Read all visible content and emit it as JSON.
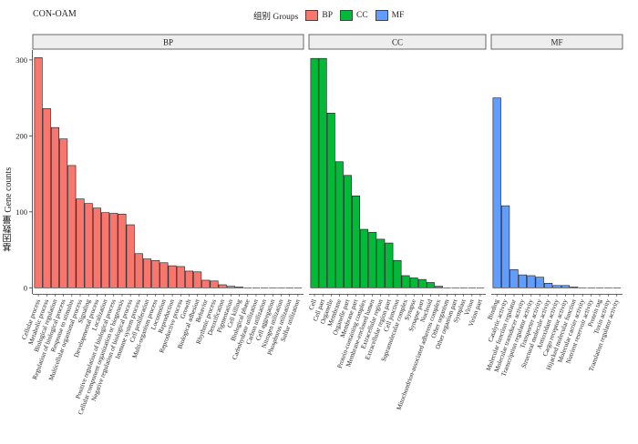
{
  "page_title": "CON-OAM",
  "legend": {
    "title": "组别 Groups",
    "items": [
      {
        "label": "BP",
        "color": "#F8766D"
      },
      {
        "label": "CC",
        "color": "#00BA38"
      },
      {
        "label": "MF",
        "color": "#619CFF"
      }
    ]
  },
  "chart_data": {
    "type": "bar",
    "title": "CON-OAM",
    "ylabel": "基因数量  Gene counts",
    "xlabel": "",
    "ylim": [
      -8,
      313
    ],
    "yticks": [
      0,
      100,
      200,
      300
    ],
    "grid": false,
    "legend_position": "top",
    "panels": [
      {
        "name": "BP",
        "color": "#F8766D",
        "categories": [
          "Cellular process",
          "Metabolic process",
          "Biological regulation",
          "Regulation of biological process",
          "Response to stimulus",
          "Multicellular organismal process",
          "Signaling",
          "Developmental process",
          "Localization",
          "Positive regulation of biological process",
          "Cellular component organization or biogenesis",
          "Negative regulation of biological process",
          "Immune system process",
          "Cell proliferation",
          "Multi-organism process",
          "Locomotion",
          "Reproduction",
          "Reproductive process",
          "Growth",
          "Biological adhesion",
          "Behavior",
          "Rhythmic process",
          "Detoxification",
          "Pigmentation",
          "Cell killing",
          "Biological phase",
          "Carbohydrate utilization",
          "Carbon utilization",
          "Cell aggregation",
          "Nitrogen utilization",
          "Phosphorus utilization",
          "Sulfur utilization"
        ],
        "values": [
          303,
          236,
          211,
          196,
          161,
          117,
          111,
          105,
          99,
          98,
          97,
          83,
          45,
          38,
          36,
          33,
          29,
          28,
          22,
          21,
          10,
          9,
          4,
          2,
          1,
          0,
          0,
          0,
          0,
          0,
          0,
          0
        ]
      },
      {
        "name": "CC",
        "color": "#00BA38",
        "categories": [
          "Cell",
          "Cell part",
          "Organelle",
          "Membrane",
          "Organelle part",
          "Membrane part",
          "Protein-containing complex",
          "Membrane-enclosed lumen",
          "Extracellular region",
          "Extracellular region part",
          "Cell junction",
          "Supramolecular complex",
          "Synapse",
          "Synapse part",
          "Nucleoid",
          "Mitochondrion-associated adherens complex",
          "Other organism",
          "Other organism part",
          "Symplast",
          "Virion",
          "Virion part"
        ],
        "values": [
          302,
          302,
          230,
          166,
          148,
          121,
          77,
          73,
          64,
          59,
          36,
          16,
          13,
          11,
          7,
          2,
          0,
          0,
          0,
          0,
          0
        ]
      },
      {
        "name": "MF",
        "color": "#619CFF",
        "categories": [
          "Binding",
          "Catalytic activity",
          "Molecular function regulator",
          "Molecular transducer activity",
          "Transcription regulator activity",
          "Transporter activity",
          "Structural molecule activity",
          "Antioxidant activity",
          "Cargo receptor activity",
          "Hijacked molecular function",
          "Molecular carrier activity",
          "Nutrient reservoir activity",
          "Protein tag",
          "Toxin activity",
          "Translation regulator activity"
        ],
        "values": [
          250,
          108,
          24,
          17,
          16,
          14,
          6,
          3,
          3,
          1,
          0,
          0,
          0,
          0,
          0
        ]
      }
    ]
  }
}
